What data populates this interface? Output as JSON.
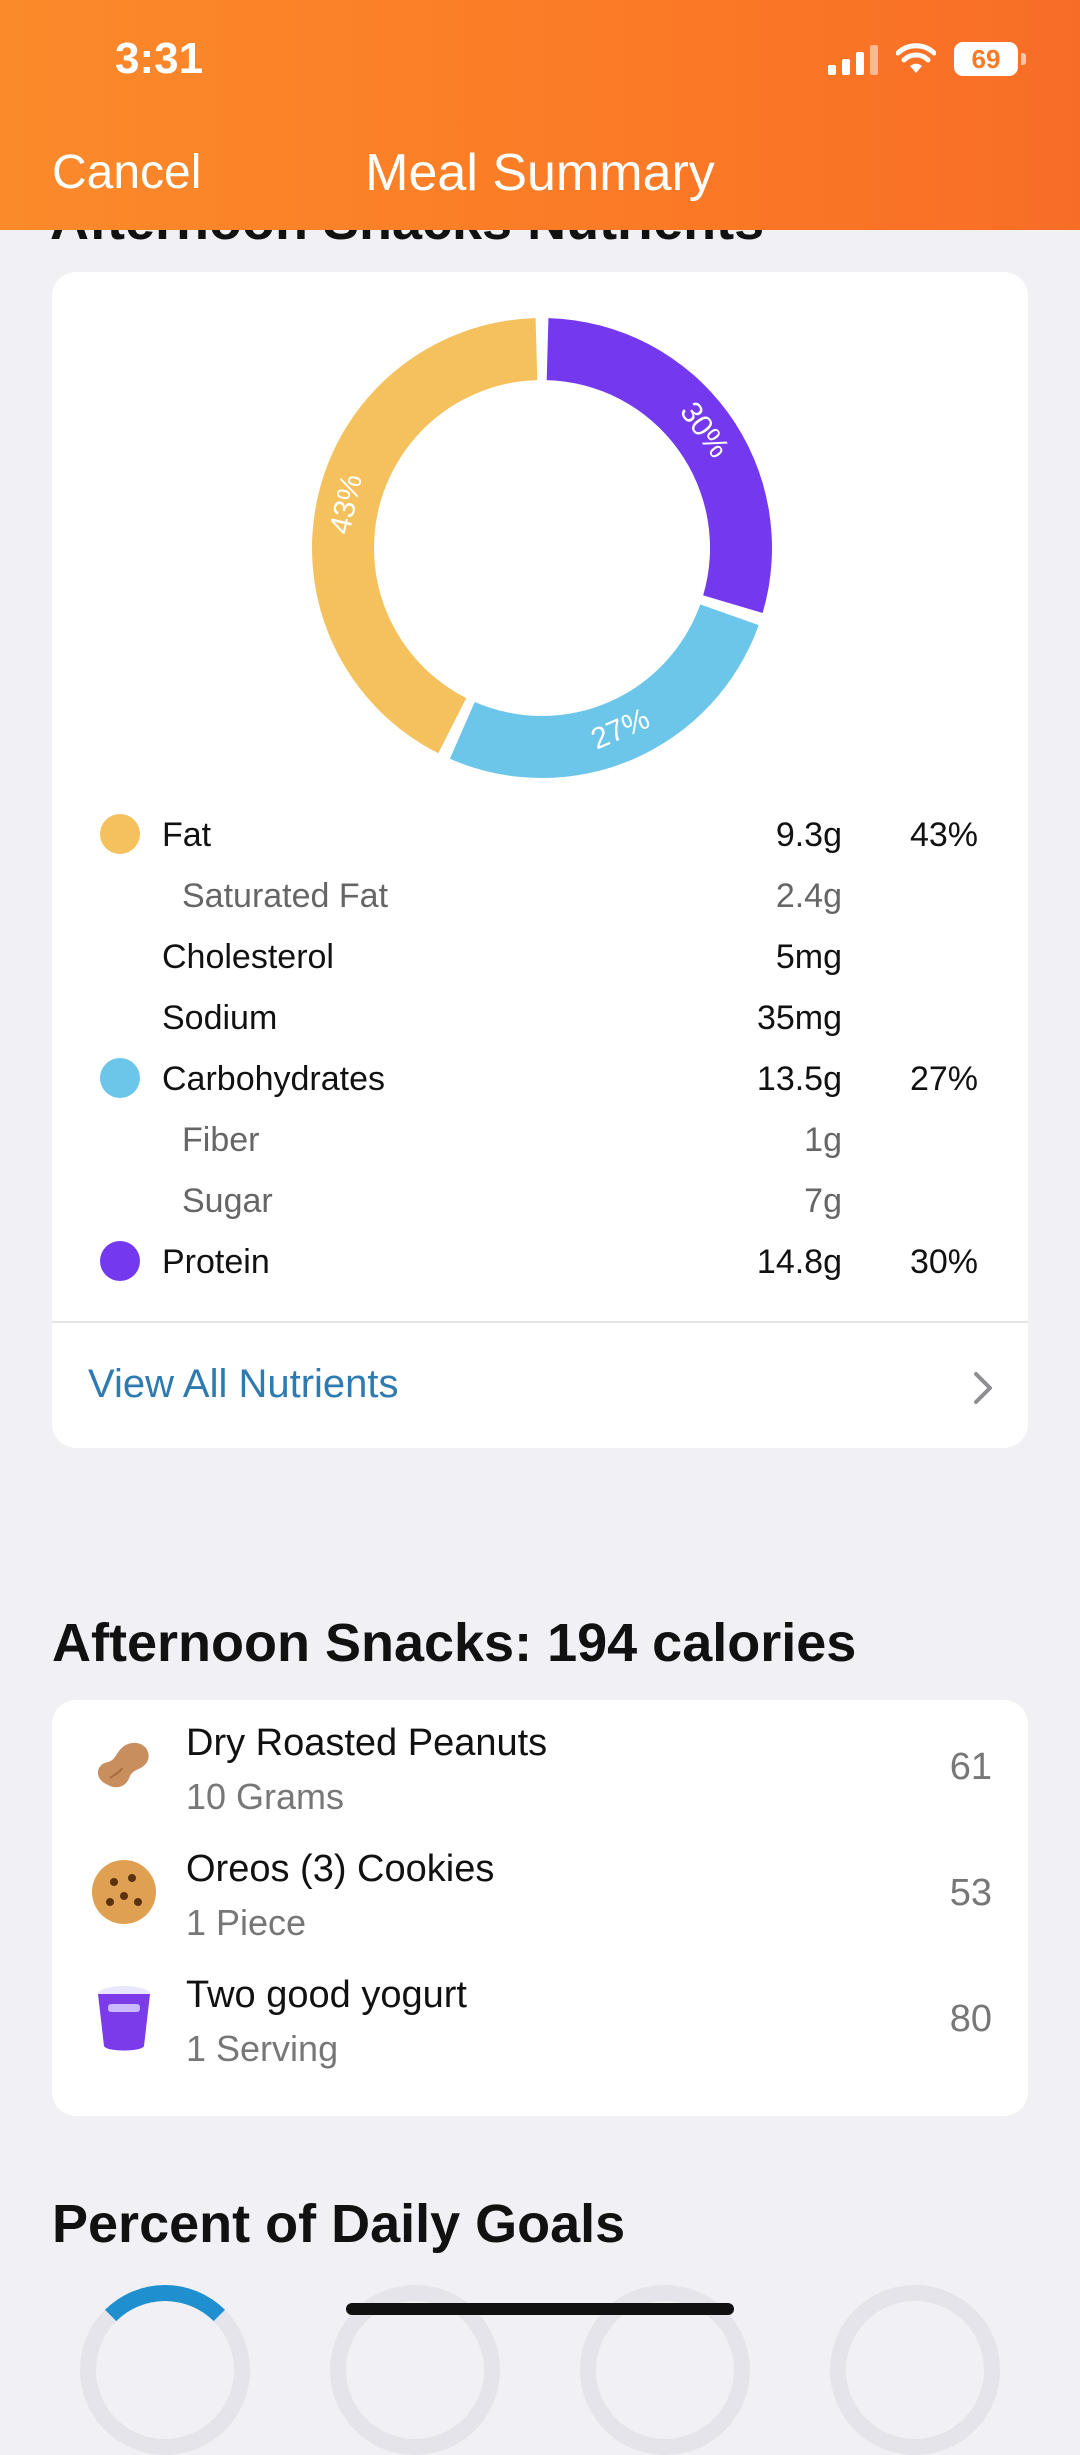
{
  "status_bar": {
    "time": "3:31",
    "battery": "69"
  },
  "header": {
    "cancel": "Cancel",
    "title": "Meal Summary"
  },
  "nutrients_section": {
    "title": "Afternoon Snacks Nutrients",
    "chart": {
      "fat_pct_label": "43%",
      "carbs_pct_label": "27%",
      "protein_pct_label": "30%"
    },
    "rows": [
      {
        "name": "Fat",
        "amount": "9.3g",
        "pct": "43%",
        "color": "#f5c15c"
      },
      {
        "name": "Saturated Fat",
        "amount": "2.4g",
        "pct": ""
      },
      {
        "name": "Cholesterol",
        "amount": "5mg",
        "pct": ""
      },
      {
        "name": "Sodium",
        "amount": "35mg",
        "pct": ""
      },
      {
        "name": "Carbohydrates",
        "amount": "13.5g",
        "pct": "27%",
        "color": "#6cc6ea"
      },
      {
        "name": "Fiber",
        "amount": "1g",
        "pct": ""
      },
      {
        "name": "Sugar",
        "amount": "7g",
        "pct": ""
      },
      {
        "name": "Protein",
        "amount": "14.8g",
        "pct": "30%",
        "color": "#7439ee"
      }
    ],
    "view_all": "View All Nutrients"
  },
  "meal": {
    "title": "Afternoon Snacks: 194 calories",
    "items": [
      {
        "name": "Dry Roasted Peanuts",
        "qty": "10 Grams",
        "calories": "61",
        "icon": "peanut-icon"
      },
      {
        "name": "Oreos (3) Cookies",
        "qty": "1 Piece",
        "calories": "53",
        "icon": "cookie-icon"
      },
      {
        "name": "Two good yogurt",
        "qty": "1 Serving",
        "calories": "80",
        "icon": "yogurt-icon"
      }
    ]
  },
  "daily_goals": {
    "title": "Percent of Daily Goals"
  },
  "chart_data": {
    "type": "pie",
    "categories": [
      "Fat",
      "Carbohydrates",
      "Protein"
    ],
    "values": [
      43,
      27,
      30
    ],
    "colors": [
      "#f5c15c",
      "#6cc6ea",
      "#7439ee"
    ],
    "title": ""
  }
}
